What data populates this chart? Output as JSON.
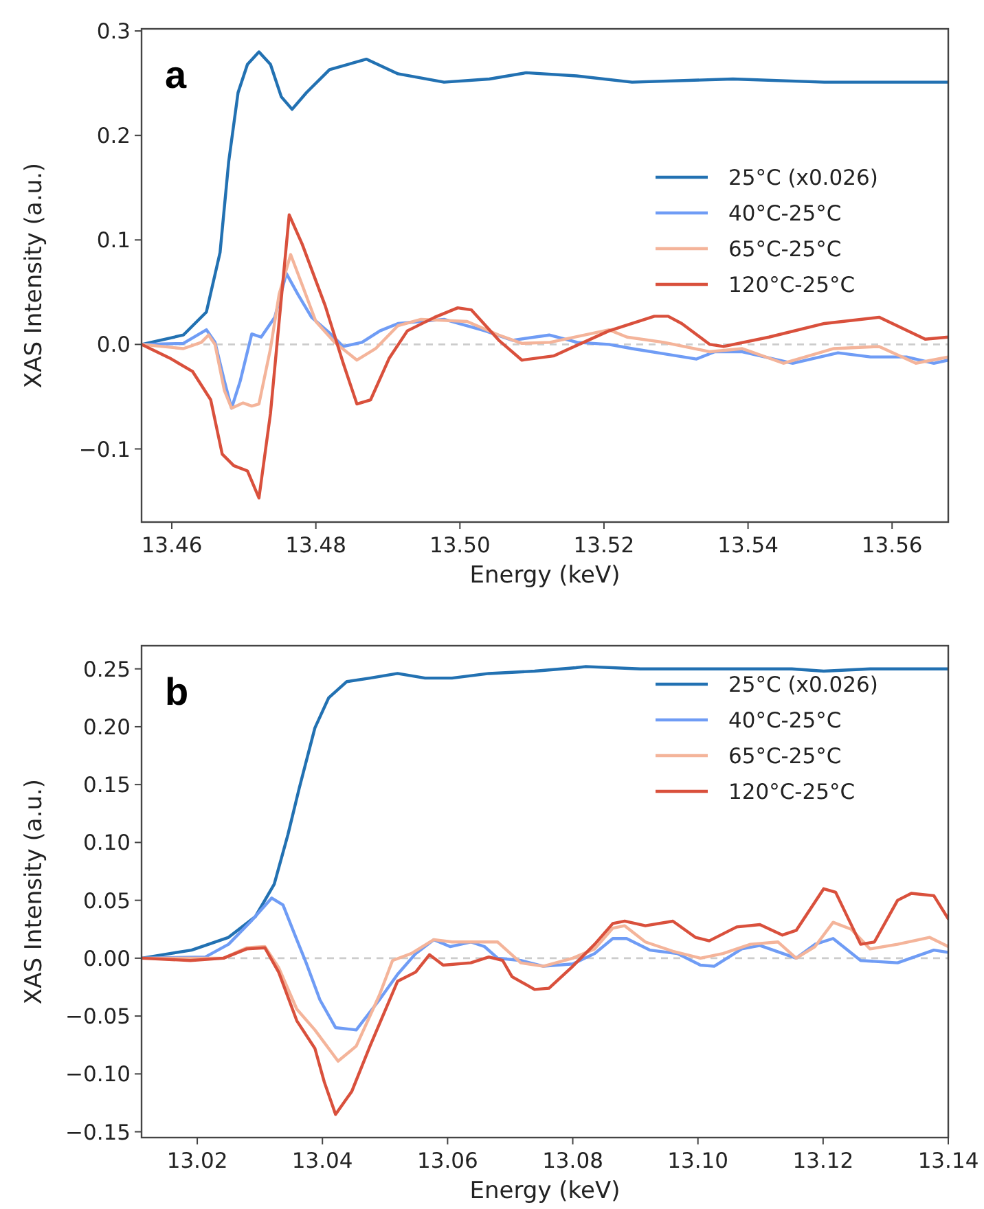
{
  "chart_data": [
    {
      "type": "line",
      "title": "a",
      "xlabel": "Energy (keV)",
      "ylabel": "XAS Intensity (a.u.)",
      "xlim": [
        13.4558,
        13.5678
      ],
      "xticks": [
        {
          "value": 13.46,
          "label": "13.46"
        },
        {
          "value": 13.48,
          "label": "13.48"
        },
        {
          "value": 13.5,
          "label": "13.50"
        },
        {
          "value": 13.52,
          "label": "13.52"
        },
        {
          "value": 13.54,
          "label": "13.54"
        },
        {
          "value": 13.56,
          "label": "13.56"
        }
      ],
      "ylim": [
        -0.17,
        0.302
      ],
      "yticks": [
        {
          "value": -0.1,
          "label": "−0.1"
        },
        {
          "value": 0,
          "label": "0.0"
        },
        {
          "value": 0.1,
          "label": "0.1"
        },
        {
          "value": 0.2,
          "label": "0.2"
        },
        {
          "value": 0.3,
          "label": "0.3"
        }
      ],
      "legend": "right",
      "grid": false,
      "ref_lines": [
        {
          "axis": "y",
          "value": 0,
          "color": "#cccccc",
          "line_style": "dashed"
        }
      ],
      "series": [
        {
          "name": "25°C (x0.026)",
          "color": "#2271b2",
          "x": [
            13.4558,
            13.4616,
            13.4648,
            13.4667,
            13.4679,
            13.4692,
            13.4705,
            13.4721,
            13.4737,
            13.4752,
            13.4767,
            13.4787,
            13.4819,
            13.487,
            13.4914,
            13.4978,
            13.5041,
            13.5092,
            13.5162,
            13.5239,
            13.5379,
            13.5506,
            13.5678
          ],
          "values": [
            0,
            0.009,
            0.031,
            0.088,
            0.175,
            0.241,
            0.268,
            0.28,
            0.268,
            0.237,
            0.225,
            0.241,
            0.263,
            0.273,
            0.259,
            0.251,
            0.254,
            0.26,
            0.257,
            0.251,
            0.254,
            0.251,
            0.251
          ]
        },
        {
          "name": "40°C-25°C",
          "color": "#6f9cf5",
          "x": [
            13.4558,
            13.4616,
            13.4648,
            13.466,
            13.4673,
            13.4683,
            13.4695,
            13.4711,
            13.4724,
            13.4743,
            13.4759,
            13.4775,
            13.4794,
            13.4819,
            13.4838,
            13.4864,
            13.4889,
            13.4914,
            13.4978,
            13.5035,
            13.5073,
            13.5124,
            13.5163,
            13.5207,
            13.5239,
            13.5284,
            13.5328,
            13.5354,
            13.5392,
            13.5462,
            13.5525,
            13.557,
            13.562,
            13.5658,
            13.5678
          ],
          "values": [
            0,
            0.001,
            0.014,
            0.002,
            -0.035,
            -0.061,
            -0.035,
            0.01,
            0.007,
            0.026,
            0.068,
            0.048,
            0.026,
            0.011,
            -0.002,
            0.002,
            0.013,
            0.02,
            0.024,
            0.013,
            0.004,
            0.009,
            0.002,
            0,
            -0.004,
            -0.009,
            -0.014,
            -0.007,
            -0.007,
            -0.018,
            -0.008,
            -0.012,
            -0.012,
            -0.018,
            -0.015
          ]
        },
        {
          "name": "65°C-25°C",
          "color": "#f4b49a",
          "x": [
            13.4558,
            13.4616,
            13.4641,
            13.4651,
            13.466,
            13.4673,
            13.4683,
            13.4699,
            13.4711,
            13.4721,
            13.4737,
            13.4749,
            13.4765,
            13.4781,
            13.48,
            13.4826,
            13.4857,
            13.4883,
            13.4914,
            13.4946,
            13.501,
            13.5054,
            13.5086,
            13.5125,
            13.5207,
            13.5232,
            13.5283,
            13.5347,
            13.5392,
            13.5449,
            13.5519,
            13.5582,
            13.5633,
            13.5678
          ],
          "values": [
            0,
            -0.004,
            0.002,
            0.009,
            0,
            -0.044,
            -0.061,
            -0.056,
            -0.059,
            -0.057,
            -0.004,
            0.048,
            0.086,
            0.057,
            0.022,
            0.002,
            -0.015,
            -0.004,
            0.018,
            0.024,
            0.022,
            0.009,
            0.001,
            0.002,
            0.014,
            0.007,
            0.002,
            -0.007,
            -0.004,
            -0.018,
            -0.004,
            -0.002,
            -0.018,
            -0.012
          ]
        },
        {
          "name": "120°C-25°C",
          "color": "#d9503c",
          "x": [
            13.4558,
            13.4597,
            13.4629,
            13.4654,
            13.467,
            13.4686,
            13.4705,
            13.4721,
            13.4737,
            13.4749,
            13.4763,
            13.4781,
            13.4813,
            13.4838,
            13.4857,
            13.4876,
            13.4902,
            13.4927,
            13.4965,
            13.4997,
            13.5016,
            13.5054,
            13.5086,
            13.513,
            13.5207,
            13.527,
            13.5289,
            13.5308,
            13.5347,
            13.5366,
            13.5429,
            13.5506,
            13.5582,
            13.5646,
            13.5678
          ],
          "values": [
            0,
            -0.013,
            -0.026,
            -0.053,
            -0.105,
            -0.116,
            -0.121,
            -0.147,
            -0.066,
            0.022,
            0.124,
            0.096,
            0.037,
            -0.018,
            -0.057,
            -0.053,
            -0.013,
            0.013,
            0.026,
            0.035,
            0.033,
            0.004,
            -0.015,
            -0.011,
            0.013,
            0.027,
            0.027,
            0.02,
            0,
            -0.002,
            0.007,
            0.02,
            0.026,
            0.005,
            0.007
          ]
        }
      ]
    },
    {
      "type": "line",
      "title": "b",
      "xlabel": "Energy (keV)",
      "ylabel": "XAS Intensity (a.u.)",
      "xlim": [
        13.0111,
        13.14
      ],
      "xticks": [
        {
          "value": 13.02,
          "label": "13.02"
        },
        {
          "value": 13.04,
          "label": "13.04"
        },
        {
          "value": 13.06,
          "label": "13.06"
        },
        {
          "value": 13.08,
          "label": "13.08"
        },
        {
          "value": 13.1,
          "label": "13.10"
        },
        {
          "value": 13.12,
          "label": "13.12"
        },
        {
          "value": 13.14,
          "label": "13.14"
        }
      ],
      "ylim": [
        -0.155,
        0.27
      ],
      "yticks": [
        {
          "value": -0.15,
          "label": "−0.15"
        },
        {
          "value": -0.1,
          "label": "−0.10"
        },
        {
          "value": -0.05,
          "label": "−0.05"
        },
        {
          "value": 0,
          "label": "0.00"
        },
        {
          "value": 0.05,
          "label": "0.05"
        },
        {
          "value": 0.1,
          "label": "0.10"
        },
        {
          "value": 0.15,
          "label": "0.15"
        },
        {
          "value": 0.2,
          "label": "0.20"
        },
        {
          "value": 0.25,
          "label": "0.25"
        }
      ],
      "legend": "top right",
      "grid": false,
      "ref_lines": [
        {
          "axis": "y",
          "value": 0,
          "color": "#cccccc",
          "line_style": "dashed"
        }
      ],
      "series": [
        {
          "name": "25°C (x0.026)",
          "color": "#2271b2",
          "x": [
            13.0111,
            13.0191,
            13.025,
            13.0293,
            13.0323,
            13.0345,
            13.0363,
            13.0388,
            13.041,
            13.0439,
            13.0476,
            13.052,
            13.0564,
            13.0607,
            13.0666,
            13.0739,
            13.0805,
            13.0821,
            13.0908,
            13.1055,
            13.115,
            13.1201,
            13.1275,
            13.14
          ],
          "values": [
            0,
            0.007,
            0.018,
            0.036,
            0.064,
            0.107,
            0.147,
            0.199,
            0.225,
            0.239,
            0.242,
            0.246,
            0.242,
            0.242,
            0.246,
            0.248,
            0.251,
            0.252,
            0.25,
            0.25,
            0.25,
            0.248,
            0.25,
            0.25
          ]
        },
        {
          "name": "40°C-25°C",
          "color": "#6f9cf5",
          "x": [
            13.0111,
            13.0213,
            13.025,
            13.0286,
            13.0319,
            13.0337,
            13.0359,
            13.0374,
            13.0396,
            13.0421,
            13.0454,
            13.0491,
            13.052,
            13.0549,
            13.0578,
            13.0604,
            13.0637,
            13.0659,
            13.068,
            13.0717,
            13.0753,
            13.08,
            13.0835,
            13.0864,
            13.0886,
            13.0923,
            13.0967,
            13.1004,
            13.1026,
            13.107,
            13.1099,
            13.1157,
            13.1187,
            13.1216,
            13.126,
            13.1319,
            13.1377,
            13.14
          ],
          "values": [
            0,
            0.001,
            0.012,
            0.032,
            0.052,
            0.046,
            0.016,
            -0.004,
            -0.036,
            -0.06,
            -0.062,
            -0.036,
            -0.014,
            0.004,
            0.016,
            0.01,
            0.014,
            0.01,
            0,
            -0.002,
            -0.007,
            -0.005,
            0.004,
            0.017,
            0.017,
            0.007,
            0.004,
            -0.006,
            -0.007,
            0.008,
            0.011,
            0,
            0.012,
            0.017,
            -0.002,
            -0.004,
            0.007,
            0.005
          ]
        },
        {
          "name": "65°C-25°C",
          "color": "#f4b49a",
          "x": [
            13.0111,
            13.0242,
            13.0279,
            13.0308,
            13.033,
            13.0359,
            13.0388,
            13.0425,
            13.0454,
            13.0491,
            13.0512,
            13.0542,
            13.0578,
            13.0607,
            13.0651,
            13.068,
            13.0717,
            13.0753,
            13.08,
            13.0835,
            13.0864,
            13.0883,
            13.0916,
            13.096,
            13.1004,
            13.104,
            13.1084,
            13.1128,
            13.1157,
            13.1187,
            13.1216,
            13.1245,
            13.1275,
            13.1319,
            13.137,
            13.14
          ],
          "values": [
            0,
            0,
            0.009,
            0.01,
            -0.008,
            -0.044,
            -0.062,
            -0.089,
            -0.076,
            -0.032,
            -0.002,
            0.004,
            0.016,
            0.014,
            0.014,
            0.014,
            -0.004,
            -0.007,
            0,
            0.008,
            0.026,
            0.028,
            0.014,
            0.006,
            0,
            0.004,
            0.012,
            0.014,
            0,
            0.01,
            0.031,
            0.025,
            0.008,
            0.012,
            0.018,
            0.01
          ]
        },
        {
          "name": "120°C-25°C",
          "color": "#d9503c",
          "x": [
            13.0111,
            13.0189,
            13.0242,
            13.0279,
            13.0308,
            13.033,
            13.0359,
            13.0388,
            13.0403,
            13.0421,
            13.0447,
            13.0476,
            13.052,
            13.0549,
            13.0571,
            13.0593,
            13.0637,
            13.0666,
            13.0688,
            13.0703,
            13.0739,
            13.0762,
            13.0798,
            13.0835,
            13.0864,
            13.0883,
            13.0916,
            13.096,
            13.0996,
            13.1018,
            13.1062,
            13.1099,
            13.1135,
            13.1157,
            13.1201,
            13.122,
            13.126,
            13.1282,
            13.1319,
            13.1341,
            13.1377,
            13.14
          ],
          "values": [
            0,
            -0.002,
            0,
            0.008,
            0.009,
            -0.012,
            -0.054,
            -0.078,
            -0.107,
            -0.135,
            -0.115,
            -0.076,
            -0.02,
            -0.012,
            0.003,
            -0.006,
            -0.004,
            0.001,
            -0.002,
            -0.016,
            -0.027,
            -0.026,
            -0.008,
            0.012,
            0.03,
            0.032,
            0.028,
            0.032,
            0.018,
            0.015,
            0.027,
            0.029,
            0.02,
            0.024,
            0.06,
            0.057,
            0.012,
            0.014,
            0.05,
            0.056,
            0.054,
            0.034
          ]
        }
      ]
    }
  ]
}
